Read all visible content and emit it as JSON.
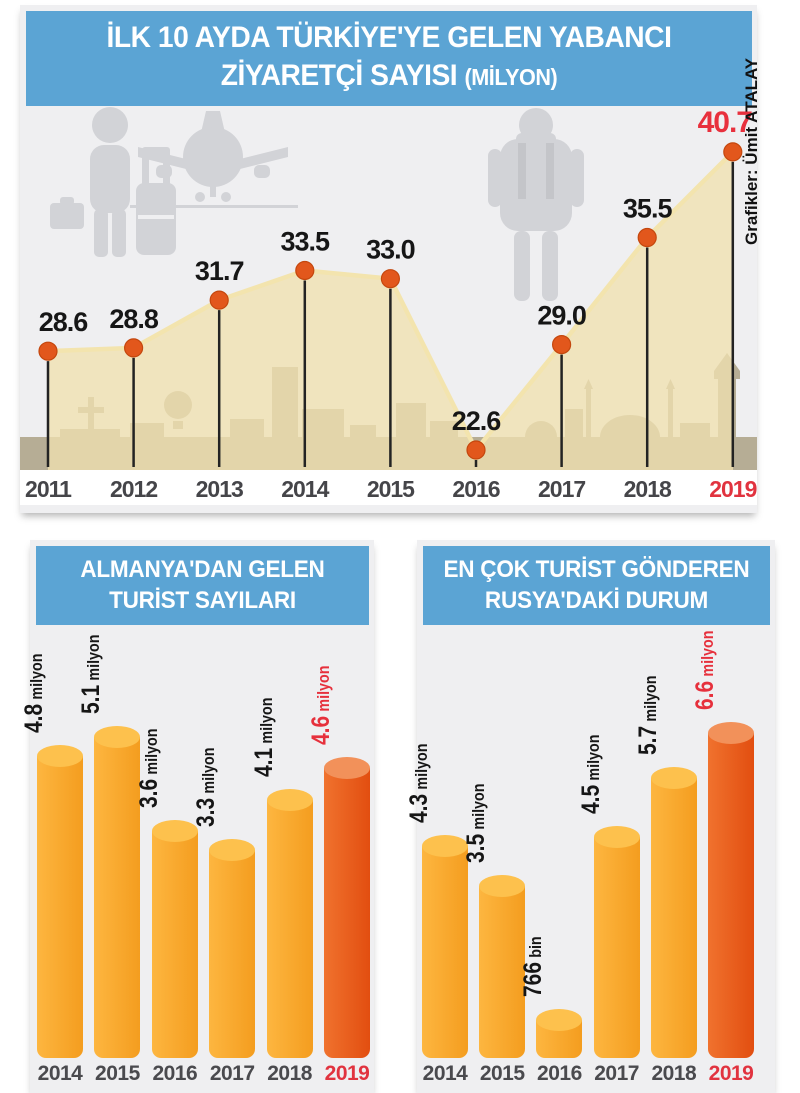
{
  "page": {
    "credit": "Grafikler: Ümit ATALAY"
  },
  "colors": {
    "banner_blue": "#5ba4d4",
    "panel_gray": "#efeff1",
    "silhouette_gray": "#d2d3d7",
    "skyline_tan": "#b6ad95",
    "area_beige": "#f0e0b0",
    "line_cream": "#f3e4ae",
    "dot_orange": "#e2571c",
    "stem_black": "#232323",
    "value_black": "#161616",
    "accent_red": "#e8303d",
    "year_gray": "#454549",
    "year_red": "#e1333f",
    "bar_orange": "#f7a62a",
    "bar_orange_top": "#fdc14d",
    "bar_red": "#e85e1f",
    "bar_red_top": "#f2915a"
  },
  "icons": {
    "traveler": "traveler-with-luggage-icon",
    "airplane": "airplane-front-icon",
    "backpacker": "backpacker-icon",
    "balloon": "hot-air-balloon-icon",
    "skyline": "istanbul-skyline-silhouette"
  },
  "chart_data": [
    {
      "id": "visitors_line",
      "type": "line",
      "title_lines": [
        "İLK 10 AYDA TÜRKİYE'YE GELEN YABANCI",
        "ZİYARETÇİ SAYISI"
      ],
      "title_suffix": "(MİLYON)",
      "unit": "milyon",
      "categories": [
        "2011",
        "2012",
        "2013",
        "2014",
        "2015",
        "2016",
        "2017",
        "2018",
        "2019"
      ],
      "values": [
        28.6,
        28.8,
        31.7,
        33.5,
        33.0,
        22.6,
        29.0,
        35.5,
        40.7
      ],
      "value_labels": [
        "28.6",
        "28.8",
        "31.7",
        "33.5",
        "33.0",
        "22.6",
        "29.0",
        "35.5",
        "40.7"
      ],
      "highlight_index": 8,
      "ylim": [
        22.6,
        40.7
      ],
      "grid": false,
      "legend": "none"
    },
    {
      "id": "germany_bars",
      "type": "bar",
      "title_lines": [
        "ALMANYA'DAN GELEN",
        "TURİST SAYILARI"
      ],
      "categories": [
        "2014",
        "2015",
        "2016",
        "2017",
        "2018",
        "2019"
      ],
      "values": [
        4.8,
        5.1,
        3.6,
        3.3,
        4.1,
        4.6
      ],
      "value_labels": [
        {
          "num": "4.8",
          "unit": "milyon"
        },
        {
          "num": "5.1",
          "unit": "milyon"
        },
        {
          "num": "3.6",
          "unit": "milyon"
        },
        {
          "num": "3.3",
          "unit": "milyon"
        },
        {
          "num": "4.1",
          "unit": "milyon"
        },
        {
          "num": "4.6",
          "unit": "milyon"
        }
      ],
      "highlight_index": 5,
      "ylim": [
        0,
        5.5
      ]
    },
    {
      "id": "russia_bars",
      "type": "bar",
      "title_lines": [
        "EN ÇOK TURİST GÖNDEREN",
        "RUSYA'DAKİ DURUM"
      ],
      "categories": [
        "2014",
        "2015",
        "2016",
        "2017",
        "2018",
        "2019"
      ],
      "values": [
        4.3,
        3.5,
        0.766,
        4.5,
        5.7,
        6.6
      ],
      "value_labels": [
        {
          "num": "4.3",
          "unit": "milyon"
        },
        {
          "num": "3.5",
          "unit": "milyon"
        },
        {
          "num": "766",
          "unit": "bin"
        },
        {
          "num": "4.5",
          "unit": "milyon"
        },
        {
          "num": "5.7",
          "unit": "milyon"
        },
        {
          "num": "6.6",
          "unit": "milyon"
        }
      ],
      "highlight_index": 5,
      "ylim": [
        0,
        7
      ]
    }
  ]
}
